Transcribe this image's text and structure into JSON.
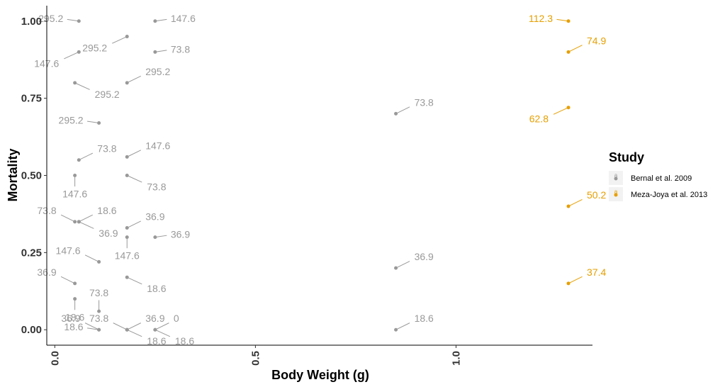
{
  "chart_data": {
    "type": "scatter",
    "title": "",
    "xlabel": "Body Weight (g)",
    "ylabel": "Mortality",
    "xlim": [
      -0.02,
      1.34
    ],
    "ylim": [
      -0.05,
      1.05
    ],
    "x_ticks": [
      {
        "value": 0,
        "label": "0.0"
      },
      {
        "value": 0.5,
        "label": "0.5"
      },
      {
        "value": 1.0,
        "label": "1.0"
      }
    ],
    "y_ticks": [
      {
        "value": 0,
        "label": "0.00"
      },
      {
        "value": 0.25,
        "label": "0.25"
      },
      {
        "value": 0.5,
        "label": "0.50"
      },
      {
        "value": 0.75,
        "label": "0.75"
      },
      {
        "value": 1.0,
        "label": "1.00"
      }
    ],
    "grid": false,
    "legend": {
      "title": "Study",
      "position": "right",
      "entries": [
        "Bernal et al. 2009",
        "Meza-Joya et al. 2013"
      ]
    },
    "series": [
      {
        "name": "Bernal et al. 2009",
        "color": "#999999",
        "points": [
          {
            "x": 0.06,
            "y": 1.0,
            "label": "295.2",
            "label_dir": "left"
          },
          {
            "x": 0.18,
            "y": 0.95,
            "label": "295.2",
            "label_dir": "down-left"
          },
          {
            "x": 0.25,
            "y": 1.0,
            "label": "147.6",
            "label_dir": "right"
          },
          {
            "x": 0.06,
            "y": 0.9,
            "label": "147.6",
            "label_dir": "down-left"
          },
          {
            "x": 0.25,
            "y": 0.9,
            "label": "73.8",
            "label_dir": "right"
          },
          {
            "x": 0.05,
            "y": 0.8,
            "label": "295.2",
            "label_dir": "down-right"
          },
          {
            "x": 0.18,
            "y": 0.8,
            "label": "295.2",
            "label_dir": "up-right"
          },
          {
            "x": 0.11,
            "y": 0.67,
            "label": "295.2",
            "label_dir": "left"
          },
          {
            "x": 0.06,
            "y": 0.55,
            "label": "73.8",
            "label_dir": "up-right"
          },
          {
            "x": 0.18,
            "y": 0.56,
            "label": "147.6",
            "label_dir": "up-right"
          },
          {
            "x": 0.05,
            "y": 0.5,
            "label": "147.6",
            "label_dir": "down"
          },
          {
            "x": 0.18,
            "y": 0.5,
            "label": "73.8",
            "label_dir": "down-right"
          },
          {
            "x": 0.05,
            "y": 0.35,
            "label": "73.8",
            "label_dir": "up-left"
          },
          {
            "x": 0.06,
            "y": 0.35,
            "label": "18.6",
            "label_dir": "up-right"
          },
          {
            "x": 0.06,
            "y": 0.35,
            "label": "36.9",
            "label_dir": "down-right"
          },
          {
            "x": 0.18,
            "y": 0.33,
            "label": "36.9",
            "label_dir": "up-right"
          },
          {
            "x": 0.18,
            "y": 0.3,
            "label": "147.6",
            "label_dir": "down"
          },
          {
            "x": 0.25,
            "y": 0.3,
            "label": "36.9",
            "label_dir": "right"
          },
          {
            "x": 0.11,
            "y": 0.22,
            "label": "147.6",
            "label_dir": "up-left"
          },
          {
            "x": 0.05,
            "y": 0.15,
            "label": "36.9",
            "label_dir": "up-left"
          },
          {
            "x": 0.18,
            "y": 0.17,
            "label": "18.6",
            "label_dir": "down-right"
          },
          {
            "x": 0.05,
            "y": 0.1,
            "label": "18.6",
            "label_dir": "down"
          },
          {
            "x": 0.11,
            "y": 0.06,
            "label": "73.8",
            "label_dir": "up"
          },
          {
            "x": 0.11,
            "y": 0.0,
            "label": "36.9",
            "label_dir": "up-left"
          },
          {
            "x": 0.11,
            "y": 0.0,
            "label": "18.6",
            "label_dir": "left"
          },
          {
            "x": 0.18,
            "y": 0.0,
            "label": "73.8",
            "label_dir": "up-left"
          },
          {
            "x": 0.18,
            "y": 0.0,
            "label": "36.9",
            "label_dir": "up-right"
          },
          {
            "x": 0.18,
            "y": 0.0,
            "label": "18.6",
            "label_dir": "down-right"
          },
          {
            "x": 0.25,
            "y": 0.0,
            "label": "0",
            "label_dir": "up-right"
          },
          {
            "x": 0.25,
            "y": 0.0,
            "label": "18.6",
            "label_dir": "down-right"
          },
          {
            "x": 0.85,
            "y": 0.7,
            "label": "73.8",
            "label_dir": "up-right"
          },
          {
            "x": 0.85,
            "y": 0.2,
            "label": "36.9",
            "label_dir": "up-right"
          },
          {
            "x": 0.85,
            "y": 0.0,
            "label": "18.6",
            "label_dir": "up-right"
          }
        ]
      },
      {
        "name": "Meza-Joya et al. 2013",
        "color": "#E69F00",
        "points": [
          {
            "x": 1.28,
            "y": 1.0,
            "label": "112.3",
            "label_dir": "left"
          },
          {
            "x": 1.28,
            "y": 0.9,
            "label": "74.9",
            "label_dir": "up-right"
          },
          {
            "x": 1.28,
            "y": 0.72,
            "label": "62.8",
            "label_dir": "down-left"
          },
          {
            "x": 1.28,
            "y": 0.4,
            "label": "50.2",
            "label_dir": "up-right"
          },
          {
            "x": 1.28,
            "y": 0.15,
            "label": "37.4",
            "label_dir": "up-right"
          }
        ]
      }
    ]
  }
}
